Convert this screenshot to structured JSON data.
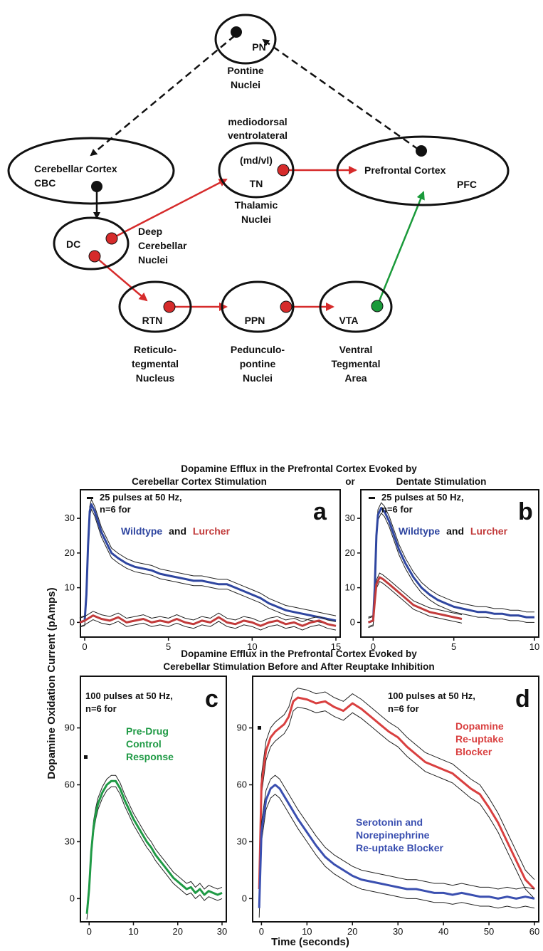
{
  "colors": {
    "red": "#d62b2b",
    "black": "#111111",
    "green": "#1a9a3a",
    "wt_blue": "#2f46a0",
    "lurcher_red": "#c23b3b",
    "pre_green": "#1f9a45",
    "da_red": "#d94040",
    "sn_blue": "#3a4fb0"
  },
  "diagram": {
    "nodes": {
      "pn": {
        "abbr": "PN",
        "label_lines": [
          "Pontine",
          "Nuclei"
        ]
      },
      "cbc": {
        "name": "Cerebellar Cortex",
        "abbr": "CBC"
      },
      "tn": {
        "top_lines": [
          "mediodorsal",
          "ventrolateral"
        ],
        "inner": "(md/vl)",
        "abbr": "TN",
        "label_lines": [
          "Thalamic",
          "Nuclei"
        ]
      },
      "pfc": {
        "name": "Prefrontal Cortex",
        "abbr": "PFC"
      },
      "dc": {
        "abbr": "DC",
        "label_lines": [
          "Deep",
          "Cerebellar",
          "Nuclei"
        ]
      },
      "rtn": {
        "abbr": "RTN",
        "label_lines": [
          "Reticulo-",
          "tegmental",
          "Nucleus"
        ]
      },
      "ppn": {
        "abbr": "PPN",
        "label_lines": [
          "Pedunculo-",
          "pontine",
          "Nuclei"
        ]
      },
      "vta": {
        "abbr": "VTA",
        "label_lines": [
          "Ventral",
          "Tegmental",
          "Area"
        ]
      }
    }
  },
  "figure": {
    "ylabel": "Dopamine Oxidation Current (pAmps)",
    "xlabel": "Time (seconds)",
    "top_title_line1": "Dopamine Efflux in the Prefrontal Cortex Evoked by",
    "top_title_left": "Cerebellar Cortex Stimulation",
    "top_title_or": "or",
    "top_title_right": "Dentate Stimulation",
    "bottom_title_line1": "Dopamine Efflux in the Prefrontal Cortex Evoked by",
    "bottom_title_line2": "Cerebellar Stimulation Before and After Reuptake Inhibition"
  },
  "panels": {
    "a": {
      "letter": "a",
      "note1": "25 pulses at 50 Hz,",
      "note2": "n=6 for",
      "legend_a": "Wildtype",
      "legend_and": "and",
      "legend_b": "Lurcher"
    },
    "b": {
      "letter": "b",
      "note1": "25 pulses at 50 Hz,",
      "note2": "n=6 for",
      "legend_a": "Wildtype",
      "legend_and": "and",
      "legend_b": "Lurcher"
    },
    "c": {
      "letter": "c",
      "note1": "100 pulses at 50 Hz,",
      "note2": "n=6 for",
      "legend_lines": [
        "Pre-Drug",
        "Control",
        "Response"
      ]
    },
    "d": {
      "letter": "d",
      "note1": "100 pulses at 50 Hz,",
      "note2": "n=6 for",
      "legend_red": [
        "Dopamine",
        "Re-uptake",
        "Blocker"
      ],
      "legend_blue": [
        "Serotonin and",
        "Norepinephrine",
        "Re-uptake Blocker"
      ]
    }
  },
  "chart_data": [
    {
      "type": "line",
      "panel": "a",
      "xlim": [
        0,
        15
      ],
      "ylim": [
        -3,
        37
      ],
      "xticks": [
        0,
        5,
        10,
        15
      ],
      "yticks": [
        0,
        10,
        20,
        30
      ],
      "series": [
        {
          "name": "Wildtype",
          "color": "#2f46a0",
          "x": [
            -0.3,
            0,
            0.1,
            0.2,
            0.3,
            0.4,
            0.6,
            0.8,
            1,
            1.3,
            1.6,
            2,
            2.5,
            3,
            3.5,
            4,
            4.5,
            5,
            5.5,
            6,
            6.5,
            7,
            7.5,
            8,
            8.5,
            9,
            9.5,
            10,
            10.5,
            11,
            11.5,
            12,
            12.5,
            13,
            13.5,
            14,
            14.5,
            15
          ],
          "y": [
            0,
            0.5,
            8,
            22,
            32,
            34,
            32,
            29,
            26,
            23,
            20,
            18.5,
            17,
            16,
            15.5,
            15,
            14,
            13.5,
            13,
            12.5,
            12,
            12,
            11.5,
            11,
            11,
            10,
            9,
            8,
            7,
            5.5,
            4.5,
            3.5,
            3,
            2.5,
            2,
            1.5,
            1,
            0.5
          ],
          "error": 1.4
        },
        {
          "name": "Lurcher",
          "color": "#c23b3b",
          "x": [
            -0.3,
            0,
            0.5,
            1,
            1.5,
            2,
            2.5,
            3,
            3.5,
            4,
            4.5,
            5,
            5.5,
            6,
            6.5,
            7,
            7.5,
            8,
            8.5,
            9,
            9.5,
            10,
            10.5,
            11,
            11.5,
            12,
            12.5,
            13,
            13.5,
            14,
            14.5,
            15
          ],
          "y": [
            0,
            0.5,
            2,
            1,
            0.5,
            1.5,
            0,
            0.5,
            1,
            0,
            0.5,
            0,
            1,
            0,
            -0.5,
            0.5,
            0,
            1.5,
            0,
            -0.5,
            0.5,
            0,
            -1,
            0,
            0.5,
            -0.5,
            0,
            -1,
            0,
            0.5,
            -0.5,
            -1
          ],
          "error": 1.2
        }
      ]
    },
    {
      "type": "line",
      "panel": "b",
      "xlim": [
        -0.5,
        10
      ],
      "ylim": [
        -3,
        37
      ],
      "xticks": [
        0,
        5,
        10
      ],
      "yticks": [
        0,
        10,
        20,
        30
      ],
      "series": [
        {
          "name": "Wildtype",
          "color": "#2f46a0",
          "x": [
            -0.3,
            0,
            0.1,
            0.2,
            0.3,
            0.5,
            0.7,
            1,
            1.3,
            1.6,
            2,
            2.5,
            3,
            3.5,
            4,
            4.5,
            5,
            5.5,
            6,
            6.5,
            7,
            7.5,
            8,
            8.5,
            9,
            9.5,
            10
          ],
          "y": [
            0,
            0.5,
            10,
            25,
            31,
            33,
            32,
            29,
            25,
            21,
            17,
            13,
            10,
            8,
            6.5,
            5.5,
            4.5,
            4,
            3.5,
            3,
            3,
            2.5,
            2.5,
            2,
            2,
            1.5,
            1.5
          ],
          "error": 1.5
        },
        {
          "name": "Lurcher",
          "color": "#c23b3b",
          "x": [
            -0.3,
            0,
            0.1,
            0.2,
            0.4,
            0.6,
            1,
            1.5,
            2,
            2.5,
            3,
            3.5,
            4,
            4.5,
            5,
            5.5
          ],
          "y": [
            0,
            0.5,
            6,
            11,
            13,
            12.5,
            11,
            9,
            7,
            5,
            4,
            3,
            2.5,
            2,
            1.5,
            1
          ],
          "error": 1.2
        }
      ]
    },
    {
      "type": "line",
      "panel": "c",
      "xlim": [
        -1,
        30
      ],
      "ylim": [
        -10,
        115
      ],
      "xticks": [
        0,
        10,
        20,
        30
      ],
      "yticks": [
        0,
        30,
        60,
        90
      ],
      "series": [
        {
          "name": "Pre-Drug Control Response",
          "color": "#1f9a45",
          "x": [
            -0.5,
            0,
            0.5,
            1,
            1.5,
            2,
            3,
            4,
            5,
            6,
            7,
            8,
            9,
            10,
            11,
            12,
            13,
            14,
            15,
            16,
            17,
            18,
            19,
            20,
            21,
            22,
            23,
            24,
            25,
            26,
            27,
            28,
            29,
            30
          ],
          "y": [
            -8,
            5,
            25,
            38,
            45,
            50,
            56,
            60,
            62,
            62,
            58,
            52,
            47,
            42,
            38,
            34,
            30,
            27,
            23,
            20,
            17,
            14,
            11,
            9,
            7,
            5,
            6,
            3,
            5,
            2,
            4,
            3,
            2,
            3
          ],
          "error": 3
        }
      ]
    },
    {
      "type": "line",
      "panel": "d",
      "xlim": [
        -1,
        60
      ],
      "ylim": [
        -10,
        115
      ],
      "xticks": [
        0,
        10,
        20,
        30,
        40,
        50,
        60
      ],
      "yticks": [
        0,
        30,
        60,
        90
      ],
      "series": [
        {
          "name": "Dopamine Re-uptake Blocker",
          "color": "#d94040",
          "x": [
            -0.5,
            0,
            1,
            2,
            3,
            4,
            5,
            6,
            7,
            8,
            10,
            12,
            14,
            16,
            18,
            20,
            22,
            24,
            26,
            28,
            30,
            32,
            34,
            36,
            38,
            40,
            42,
            44,
            46,
            48,
            50,
            52,
            54,
            56,
            58,
            60
          ],
          "y": [
            5,
            60,
            78,
            85,
            88,
            90,
            92,
            96,
            104,
            106,
            105,
            103,
            104,
            101,
            99,
            103,
            100,
            96,
            92,
            88,
            85,
            80,
            76,
            72,
            70,
            68,
            66,
            62,
            58,
            55,
            48,
            40,
            30,
            20,
            10,
            5
          ],
          "error": 5
        },
        {
          "name": "Serotonin and Norepinephrine Re-uptake Blocker",
          "color": "#3a4fb0",
          "x": [
            -0.5,
            0,
            1,
            2,
            3,
            4,
            5,
            6,
            8,
            10,
            12,
            14,
            16,
            18,
            20,
            22,
            24,
            26,
            28,
            30,
            32,
            34,
            36,
            38,
            40,
            42,
            44,
            46,
            48,
            50,
            52,
            54,
            56,
            58,
            60
          ],
          "y": [
            -5,
            35,
            52,
            58,
            60,
            58,
            54,
            50,
            42,
            35,
            28,
            22,
            18,
            15,
            12,
            10,
            9,
            8,
            7,
            6,
            5,
            5,
            4,
            3,
            3,
            2,
            3,
            2,
            1,
            1,
            0,
            1,
            0,
            1,
            0
          ],
          "error": 5
        }
      ]
    }
  ]
}
